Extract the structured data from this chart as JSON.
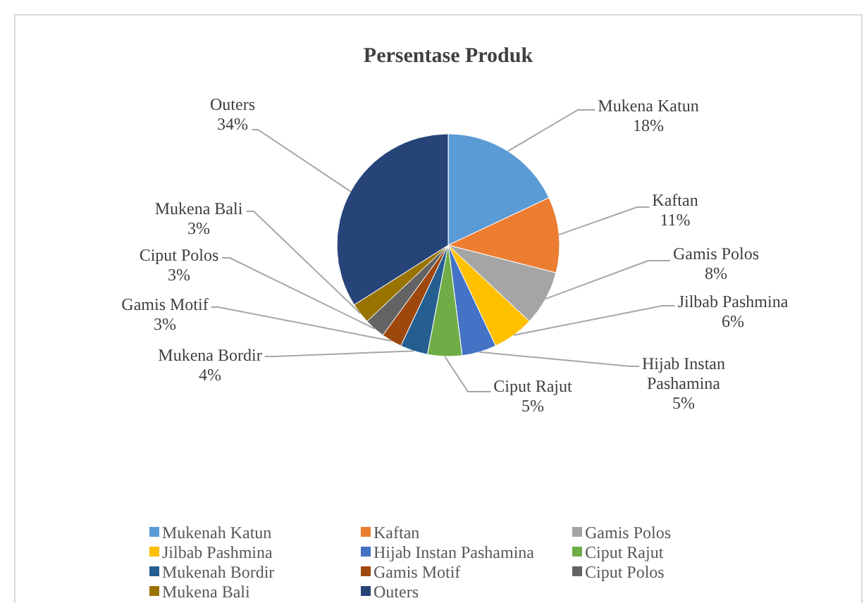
{
  "chart_data": {
    "type": "pie",
    "title": "Persentase Produk",
    "categories": [
      "Mukenah Katun",
      "Kaftan",
      "Gamis Polos",
      "Jilbab Pashmina",
      "Hijab Instan Pashamina",
      "Ciput Rajut",
      "Mukenah Bordir",
      "Gamis Motif",
      "Ciput Polos",
      "Mukena Bali",
      "Outers"
    ],
    "values": [
      18,
      11,
      8,
      6,
      5,
      5,
      4,
      3,
      3,
      3,
      34
    ],
    "colors": [
      "#5b9bd5",
      "#ed7d31",
      "#a5a5a5",
      "#ffc000",
      "#4472c4",
      "#70ad47",
      "#255e91",
      "#9e480e",
      "#636363",
      "#997300",
      "#264478"
    ],
    "value_labels": [
      "Mukena Katun 18%",
      "Kaftan 11%",
      "Gamis Polos 8%",
      "Jilbab Pashmina 6%",
      "Hijab Instan Pashamina 5%",
      "Ciput Rajut 5%",
      "Mukena Bordir 4%",
      "Gamis Motif 3%",
      "Ciput Polos 3%",
      "Mukena Bali 3%",
      "Outers 34%"
    ],
    "legend": "bottom"
  }
}
